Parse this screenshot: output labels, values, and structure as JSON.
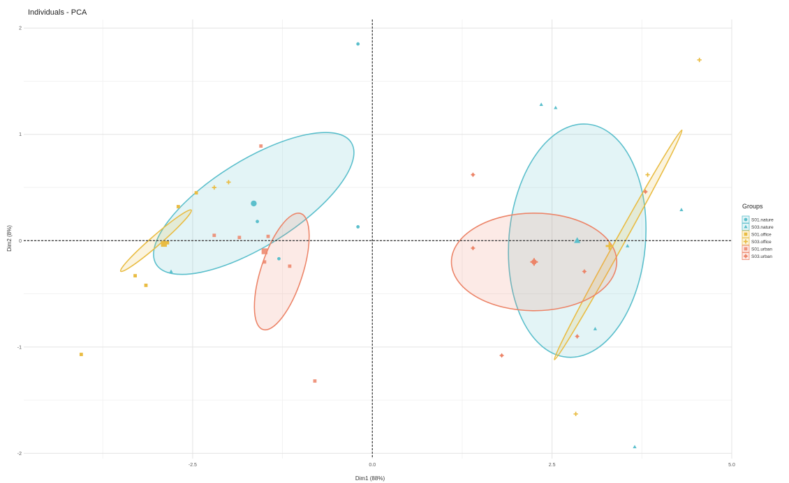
{
  "chart_data": {
    "type": "scatter",
    "title": "Individuals - PCA",
    "xlabel": "Dim1 (88%)",
    "ylabel": "Dim2 (8%)",
    "xlim": [
      -4.85,
      5.0
    ],
    "ylim": [
      -2.05,
      2.08
    ],
    "x_ticks": [
      -2.5,
      0.0,
      2.5,
      5.0
    ],
    "x_tick_labels": [
      "-2.5",
      "0.0",
      "2.5",
      "5.0"
    ],
    "y_ticks": [
      -2,
      -1,
      0,
      1,
      2
    ],
    "y_tick_labels": [
      "-2",
      "-1",
      "0",
      "1",
      "2"
    ],
    "grid": true,
    "legend": {
      "title": "Groups",
      "position": "right"
    },
    "series": [
      {
        "name": "S01.nature",
        "color": "#5bbfcc",
        "shape": "circle",
        "points": [
          [
            -1.6,
            0.18
          ],
          [
            -0.2,
            1.85
          ],
          [
            -0.2,
            0.13
          ],
          [
            -1.3,
            -0.17
          ]
        ],
        "centroid": [
          -1.65,
          0.35
        ],
        "ellipse": {
          "cx": -1.65,
          "cy": 0.35,
          "rx": 1.6,
          "ry": 0.6,
          "angle": 32
        }
      },
      {
        "name": "S03.nature",
        "color": "#5bbfcc",
        "shape": "triangle",
        "points": [
          [
            2.35,
            1.28
          ],
          [
            2.55,
            1.25
          ],
          [
            3.55,
            -0.05
          ],
          [
            3.1,
            -0.83
          ],
          [
            3.65,
            -1.94
          ],
          [
            4.3,
            0.29
          ],
          [
            -2.8,
            -0.29
          ]
        ],
        "centroid": [
          2.85,
          0.0
        ],
        "ellipse": {
          "cx": 2.85,
          "cy": 0.0,
          "rx": 1.63,
          "ry": 0.95,
          "angle": 85
        }
      },
      {
        "name": "S01.office",
        "color": "#e9bc43",
        "shape": "square",
        "points": [
          [
            -4.05,
            -1.07
          ],
          [
            -3.3,
            -0.33
          ],
          [
            -3.15,
            -0.42
          ],
          [
            -2.45,
            0.45
          ],
          [
            -2.85,
            -0.02
          ],
          [
            -2.7,
            0.32
          ]
        ],
        "centroid": [
          -2.9,
          -0.03
        ],
        "ellipse": {
          "cx": -3.01,
          "cy": 0.0,
          "rx": 0.65,
          "ry": 0.07,
          "angle": 41
        }
      },
      {
        "name": "S03.office",
        "color": "#e9bc43",
        "shape": "plus",
        "points": [
          [
            4.55,
            1.7
          ],
          [
            3.83,
            0.62
          ],
          [
            2.83,
            -1.63
          ],
          [
            -2.2,
            0.5
          ],
          [
            -2.0,
            0.55
          ]
        ],
        "centroid": [
          3.3,
          -0.05
        ],
        "ellipse": {
          "cx": 3.42,
          "cy": -0.04,
          "rx": 1.83,
          "ry": 0.06,
          "angle": 61
        }
      },
      {
        "name": "S01.urban",
        "color": "#ec8468",
        "shape": "cross",
        "points": [
          [
            -2.2,
            0.05
          ],
          [
            -1.85,
            0.03
          ],
          [
            -1.55,
            0.89
          ],
          [
            -1.45,
            0.04
          ],
          [
            -1.5,
            -0.2
          ],
          [
            -1.15,
            -0.24
          ],
          [
            -0.8,
            -1.32
          ]
        ],
        "centroid": [
          -1.5,
          -0.1
        ],
        "ellipse": {
          "cx": -1.26,
          "cy": -0.29,
          "rx": 0.85,
          "ry": 0.29,
          "angle": 72
        }
      },
      {
        "name": "S03.urban",
        "color": "#ec8468",
        "shape": "asterisk",
        "points": [
          [
            1.4,
            0.62
          ],
          [
            1.4,
            -0.07
          ],
          [
            1.8,
            -1.08
          ],
          [
            2.85,
            -0.9
          ],
          [
            2.95,
            -0.29
          ],
          [
            3.8,
            0.46
          ]
        ],
        "centroid": [
          2.25,
          -0.2
        ],
        "ellipse": {
          "cx": 2.25,
          "cy": -0.2,
          "rx": 1.15,
          "ry": 0.68,
          "angle": 0
        }
      }
    ]
  }
}
